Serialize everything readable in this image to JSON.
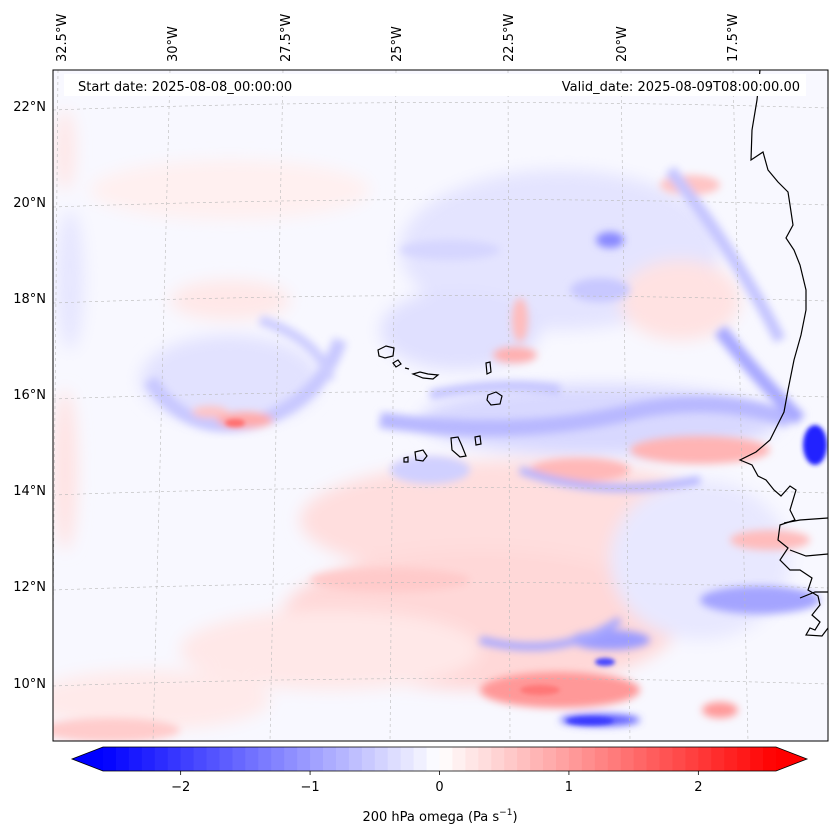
{
  "map": {
    "start_label": "Start date: 2025-08-08_00:00:00",
    "valid_label": "Valid_date: 2025-08-09T08:00:00.00",
    "lon_labels": [
      "32.5°W",
      "30°W",
      "27.5°W",
      "25°W",
      "22.5°W",
      "20°W",
      "17.5°W"
    ],
    "lat_labels": [
      "22°N",
      "20°N",
      "18°N",
      "16°N",
      "14°N",
      "12°N",
      "10°N"
    ],
    "field": "200 hPa omega",
    "islands": [
      "Santo Antão",
      "São Vicente",
      "Santa Luzia",
      "São Nicolau",
      "Sal",
      "Boa Vista",
      "Maio",
      "Santiago",
      "Fogo",
      "Brava"
    ]
  },
  "colorbar": {
    "ticks": [
      "−2",
      "−1",
      "0",
      "1",
      "2"
    ],
    "tick_values": [
      -2,
      -1,
      0,
      1,
      2
    ],
    "range": [
      -2.6,
      2.6
    ],
    "extend": "both",
    "cmap": "bwr",
    "label_main": "200 hPa omega (Pa s",
    "label_sup": "−1",
    "label_end": ")",
    "colors": {
      "min": "#0000ff",
      "mid": "#ffffff",
      "max": "#ff0000"
    }
  }
}
